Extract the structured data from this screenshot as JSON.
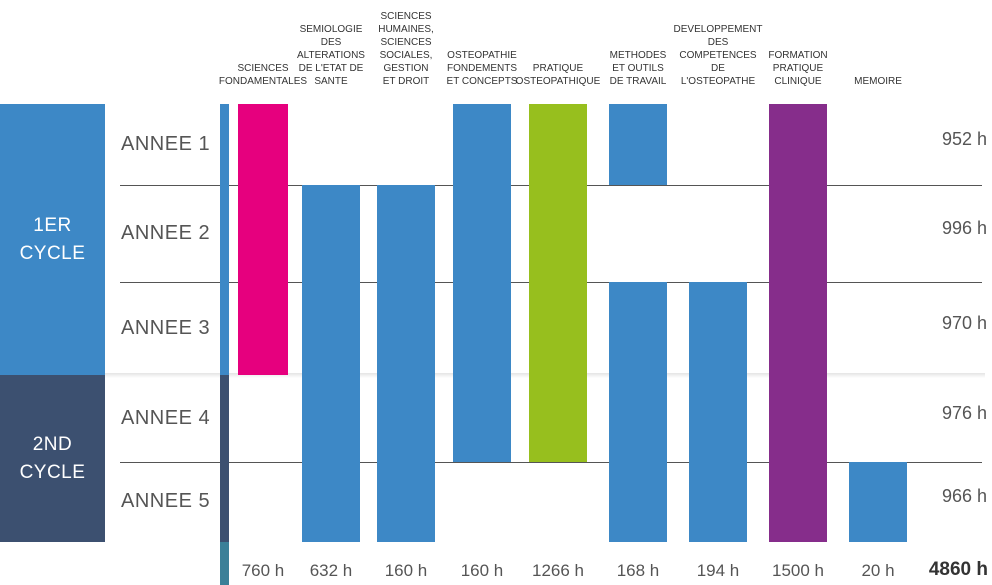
{
  "colors": {
    "cycle1": "#3d88c6",
    "cycle2": "#3c5070",
    "blue": "#3d88c6",
    "magenta": "#e6007e",
    "green": "#97bf1e",
    "purple": "#862d8b",
    "strip_top": "#3d88c6",
    "strip_mid": "#3c5070",
    "strip_bottom": "#3b8098"
  },
  "cycles": [
    {
      "label": "1ER\nCYCLE"
    },
    {
      "label": "2ND\nCYCLE"
    }
  ],
  "years": [
    {
      "label": "ANNEE 1",
      "total": "952 h"
    },
    {
      "label": "ANNEE 2",
      "total": "996 h"
    },
    {
      "label": "ANNEE 3",
      "total": "970 h"
    },
    {
      "label": "ANNEE 4",
      "total": "976 h"
    },
    {
      "label": "ANNEE 5",
      "total": "966 h"
    }
  ],
  "columns": [
    {
      "label": "SCIENCES\nFONDAMENTALES",
      "total": "760 h",
      "color": "magenta",
      "bars": [
        {
          "from_year": 1,
          "to_year": 3
        }
      ]
    },
    {
      "label": "SEMIOLOGIE\nDES\nALTERATIONS\nDE L'ETAT DE\nSANTE",
      "total": "632 h",
      "color": "blue",
      "bars": [
        {
          "from_year": 2,
          "to_year": 5
        }
      ]
    },
    {
      "label": "SCIENCES\nHUMAINES,\nSCIENCES\nSOCIALES,\nGESTION\nET DROIT",
      "total": "160 h",
      "color": "blue",
      "bars": [
        {
          "from_year": 2,
          "to_year": 5
        }
      ]
    },
    {
      "label": "OSTEOPATHIE\nFONDEMENTS\nET CONCEPTS",
      "total": "160 h",
      "color": "blue",
      "bars": [
        {
          "from_year": 1,
          "to_year": 4
        }
      ]
    },
    {
      "label": "PRATIQUE\nOSTEOPATHIQUE",
      "total": "1266 h",
      "color": "green",
      "bars": [
        {
          "from_year": 1,
          "to_year": 4
        }
      ]
    },
    {
      "label": "METHODES\nET OUTILS\nDE TRAVAIL",
      "total": "168 h",
      "color": "blue",
      "bars": [
        {
          "from_year": 1,
          "to_year": 1
        },
        {
          "from_year": 3,
          "to_year": 5
        }
      ]
    },
    {
      "label": "DEVELOPPEMENT\nDES\nCOMPETENCES\nDE\nL'OSTEOPATHE",
      "total": "194 h",
      "color": "blue",
      "bars": [
        {
          "from_year": 3,
          "to_year": 5
        }
      ]
    },
    {
      "label": "FORMATION\nPRATIQUE\nCLINIQUE",
      "total": "1500 h",
      "color": "purple",
      "bars": [
        {
          "from_year": 1,
          "to_year": 5
        }
      ]
    },
    {
      "label": "MEMOIRE",
      "total": "20 h",
      "color": "blue",
      "bars": [
        {
          "from_year": 5,
          "to_year": 5
        }
      ]
    }
  ],
  "grand_total": "4860 h"
}
